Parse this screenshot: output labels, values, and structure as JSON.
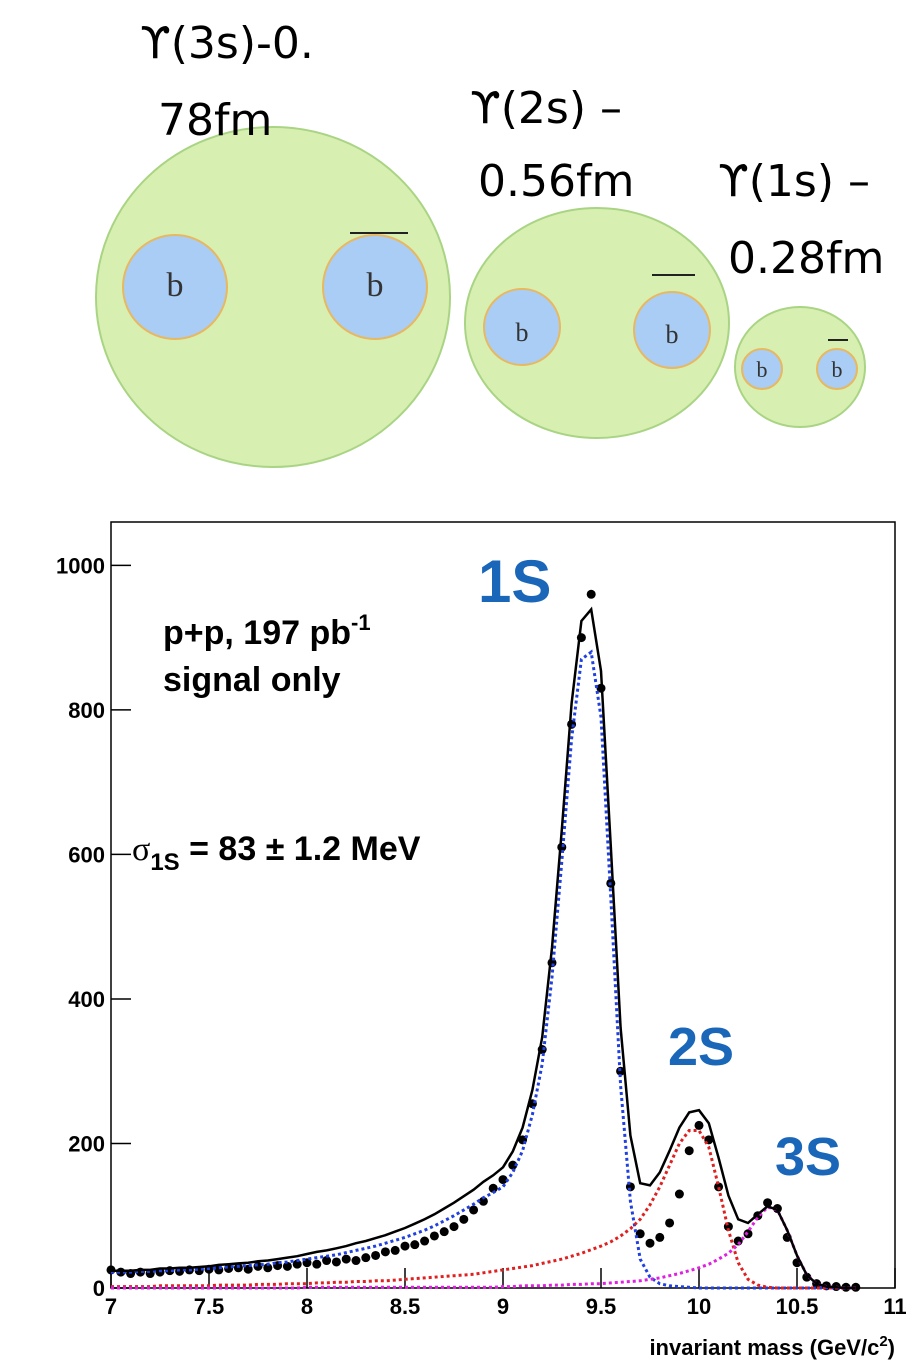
{
  "diagram": {
    "mesons": [
      {
        "label": [
          "ϒ(3s)-0.",
          "78fm"
        ],
        "quark": "b",
        "antiquark": "b"
      },
      {
        "label": [
          "ϒ(2s) –",
          "0.56fm"
        ],
        "quark": "b",
        "antiquark": "b"
      },
      {
        "label": [
          "ϒ(1s) –",
          "0.28fm"
        ],
        "quark": "b",
        "antiquark": "b"
      }
    ]
  },
  "chart_data": {
    "type": "scatter",
    "annotations": {
      "peak_1s": "1S",
      "peak_2s": "2S",
      "peak_3s": "3S",
      "dataset": {
        "main": "p+p, 197 pb",
        "sup": "-1"
      },
      "signal": "signal only",
      "width": {
        "symbol": "σ",
        "sub": "1S",
        "text": " = 83  ± 1.2 MeV"
      }
    },
    "x_label": {
      "main": "invariant mass (GeV/c",
      "sup": "2",
      "end": ")"
    },
    "xlim": [
      7,
      11
    ],
    "xticks": [
      7,
      7.5,
      8,
      8.5,
      9,
      9.5,
      10,
      10.5,
      11
    ],
    "ylim": [
      0,
      1060
    ],
    "yticks": [
      0,
      200,
      400,
      600,
      800,
      1000
    ],
    "x": [
      7,
      7.05,
      7.1,
      7.15,
      7.2,
      7.25,
      7.3,
      7.35,
      7.4,
      7.45,
      7.5,
      7.55,
      7.6,
      7.65,
      7.7,
      7.75,
      7.8,
      7.85,
      7.9,
      7.95,
      8,
      8.05,
      8.1,
      8.15,
      8.2,
      8.25,
      8.3,
      8.35,
      8.4,
      8.45,
      8.5,
      8.55,
      8.6,
      8.65,
      8.7,
      8.75,
      8.8,
      8.85,
      8.9,
      8.95,
      9,
      9.05,
      9.1,
      9.15,
      9.2,
      9.25,
      9.3,
      9.35,
      9.4,
      9.45,
      9.5,
      9.55,
      9.6,
      9.65,
      9.7,
      9.75,
      9.8,
      9.85,
      9.9,
      9.95,
      10,
      10.05,
      10.1,
      10.15,
      10.2,
      10.25,
      10.3,
      10.35,
      10.4,
      10.45,
      10.5,
      10.55,
      10.6,
      10.65,
      10.7,
      10.75,
      10.8
    ],
    "series": [
      {
        "mode": "points",
        "color": "#000000",
        "values": [
          25,
          22,
          20,
          22,
          20,
          22,
          24,
          23,
          25,
          24,
          26,
          25,
          27,
          28,
          26,
          30,
          28,
          31,
          30,
          33,
          35,
          33,
          38,
          36,
          40,
          38,
          42,
          45,
          50,
          52,
          58,
          60,
          65,
          72,
          78,
          85,
          95,
          108,
          120,
          138,
          150,
          170,
          205,
          255,
          330,
          450,
          610,
          780,
          900,
          960,
          830,
          560,
          300,
          140,
          75,
          62,
          70,
          90,
          130,
          190,
          225,
          205,
          140,
          85,
          65,
          75,
          100,
          118,
          110,
          70,
          35,
          15,
          6,
          3,
          2,
          1,
          1
        ]
      },
      {
        "mode": "line",
        "dash": true,
        "color": "#2040e0",
        "values": [
          22,
          22,
          22,
          23,
          23,
          24,
          24,
          25,
          25,
          26,
          27,
          28,
          29,
          30,
          31,
          32,
          33,
          35,
          36,
          38,
          40,
          42,
          44,
          46,
          49,
          52,
          55,
          58,
          62,
          66,
          70,
          75,
          80,
          86,
          93,
          100,
          108,
          116,
          125,
          132,
          140,
          160,
          190,
          240,
          310,
          430,
          590,
          760,
          870,
          880,
          790,
          540,
          280,
          120,
          40,
          15,
          6,
          3,
          2,
          1,
          0,
          0,
          0,
          0,
          0,
          0,
          0,
          0,
          0,
          0,
          0,
          0,
          0,
          0,
          0,
          0,
          0
        ]
      },
      {
        "mode": "line",
        "dash": true,
        "color": "#e02020",
        "values": [
          2,
          2,
          2,
          2,
          2,
          3,
          3,
          3,
          3,
          3,
          3,
          4,
          4,
          4,
          4,
          5,
          5,
          5,
          6,
          6,
          6,
          7,
          7,
          8,
          8,
          9,
          9,
          10,
          10,
          11,
          12,
          13,
          14,
          15,
          16,
          17,
          18,
          19,
          21,
          23,
          25,
          27,
          29,
          31,
          34,
          37,
          40,
          44,
          48,
          53,
          58,
          64,
          72,
          82,
          95,
          115,
          140,
          170,
          200,
          218,
          218,
          195,
          140,
          80,
          35,
          12,
          4,
          1,
          0,
          0,
          0,
          0,
          0,
          0,
          0,
          0,
          0
        ]
      },
      {
        "mode": "line",
        "dash": true,
        "color": "#e020e0",
        "values": [
          0,
          0,
          0,
          0,
          0,
          0,
          0,
          0,
          0,
          0,
          0,
          0,
          0,
          0,
          0,
          0,
          0,
          0,
          0,
          0,
          1,
          1,
          1,
          1,
          1,
          1,
          1,
          1,
          1,
          1,
          1,
          1,
          1,
          1,
          1,
          1,
          1,
          1,
          1,
          1,
          2,
          2,
          3,
          3,
          3,
          4,
          4,
          5,
          5,
          6,
          6,
          7,
          8,
          9,
          10,
          12,
          14,
          17,
          20,
          24,
          28,
          33,
          40,
          48,
          60,
          78,
          98,
          112,
          108,
          80,
          45,
          18,
          6,
          2,
          1,
          0,
          0
        ]
      },
      {
        "mode": "line",
        "dash": false,
        "color": "#000000",
        "values": [
          24,
          24,
          24,
          25,
          25,
          27,
          27,
          28,
          28,
          29,
          30,
          32,
          33,
          34,
          35,
          37,
          38,
          40,
          42,
          44,
          47,
          50,
          52,
          55,
          58,
          62,
          65,
          69,
          73,
          78,
          83,
          89,
          95,
          102,
          110,
          118,
          127,
          136,
          147,
          156,
          167,
          189,
          222,
          274,
          347,
          471,
          634,
          809,
          923,
          939,
          854,
          611,
          360,
          211,
          145,
          142,
          160,
          190,
          222,
          243,
          246,
          228,
          180,
          128,
          95,
          90,
          102,
          113,
          108,
          80,
          45,
          18,
          6,
          2,
          1,
          0,
          0
        ]
      }
    ]
  }
}
